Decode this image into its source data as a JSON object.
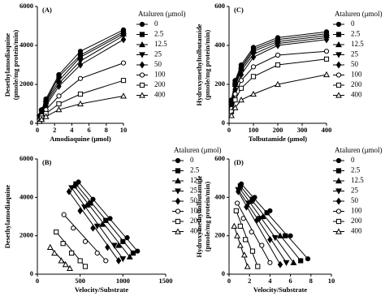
{
  "chart_data": [
    {
      "type": "line",
      "panel": "(A)",
      "xlabel": "Amodiaquine (μmol)",
      "ylabel": [
        "Desethylamodiaquine",
        "(pmole/mg protein/min)"
      ],
      "legend_title": "Ataluren (μmol)",
      "x": [
        0.25,
        0.5,
        1,
        2.5,
        5,
        10
      ],
      "xlim": [
        0,
        10
      ],
      "xticks": [
        0,
        2,
        4,
        6,
        8,
        10
      ],
      "ylim": [
        0,
        6000
      ],
      "yticks": [
        0,
        2000,
        4000,
        6000
      ],
      "series": [
        {
          "name": "0",
          "color": "#000000",
          "marker": "circle",
          "values": [
            380,
            700,
            1250,
            2500,
            3700,
            4800
          ]
        },
        {
          "name": "2.5",
          "color": "#000000",
          "marker": "square",
          "values": [
            350,
            650,
            1150,
            2400,
            3500,
            4700
          ]
        },
        {
          "name": "12.5",
          "color": "#000000",
          "marker": "triangle",
          "values": [
            320,
            600,
            1100,
            2200,
            3400,
            4600
          ]
        },
        {
          "name": "25",
          "color": "#000000",
          "marker": "triangle-down",
          "values": [
            300,
            560,
            1000,
            2050,
            3200,
            4500
          ]
        },
        {
          "name": "50",
          "color": "#000000",
          "marker": "diamond",
          "values": [
            270,
            500,
            900,
            1900,
            3000,
            4300
          ]
        },
        {
          "name": "100",
          "color": "#000000",
          "marker": "open-circle",
          "values": [
            200,
            380,
            700,
            1400,
            2300,
            3100
          ]
        },
        {
          "name": "200",
          "color": "#000000",
          "marker": "open-square",
          "values": [
            140,
            270,
            500,
            1000,
            1500,
            2200
          ]
        },
        {
          "name": "400",
          "color": "#000000",
          "marker": "open-triangle",
          "values": [
            100,
            200,
            350,
            700,
            1000,
            1400
          ]
        }
      ]
    },
    {
      "type": "line",
      "panel": "(C)",
      "xlabel": "Tolbutamide (μmol)",
      "ylabel": [
        "Hydroxymethyltolbutamide",
        "(pmole/mg protein/min)"
      ],
      "legend_title": "Ataluren (μmol)",
      "x": [
        10,
        25,
        50,
        100,
        200,
        400
      ],
      "xlim": [
        0,
        400
      ],
      "xticks": [
        0,
        100,
        200,
        300,
        400
      ],
      "ylim": [
        0,
        600
      ],
      "yticks": [
        0,
        200,
        400,
        600
      ],
      "series": [
        {
          "name": "0",
          "color": "#000000",
          "marker": "circle",
          "values": [
            120,
            220,
            300,
            390,
            440,
            470
          ]
        },
        {
          "name": "2.5",
          "color": "#000000",
          "marker": "square",
          "values": [
            115,
            210,
            290,
            380,
            430,
            460
          ]
        },
        {
          "name": "12.5",
          "color": "#000000",
          "marker": "triangle",
          "values": [
            110,
            200,
            280,
            370,
            420,
            450
          ]
        },
        {
          "name": "25",
          "color": "#000000",
          "marker": "triangle-down",
          "values": [
            100,
            190,
            270,
            355,
            410,
            440
          ]
        },
        {
          "name": "50",
          "color": "#000000",
          "marker": "diamond",
          "values": [
            90,
            175,
            250,
            340,
            400,
            430
          ]
        },
        {
          "name": "100",
          "color": "#000000",
          "marker": "open-circle",
          "values": [
            75,
            150,
            220,
            290,
            350,
            370
          ]
        },
        {
          "name": "200",
          "color": "#000000",
          "marker": "open-square",
          "values": [
            60,
            120,
            180,
            240,
            300,
            330
          ]
        },
        {
          "name": "400",
          "color": "#000000",
          "marker": "open-triangle",
          "values": [
            40,
            80,
            120,
            150,
            200,
            250
          ]
        }
      ]
    },
    {
      "type": "scatter",
      "panel": "(B)",
      "xlabel": "Velocity/Substrate",
      "ylabel": [
        "Desethylamodiaquine"
      ],
      "legend_title": "Ataluren (μmol)",
      "xlim": [
        0,
        1500
      ],
      "xticks": [
        0,
        500,
        1000,
        1500
      ],
      "ylim": [
        0,
        6000
      ],
      "yticks": [
        0,
        2000,
        4000,
        6000
      ],
      "series": [
        {
          "name": "0",
          "color": "#000000",
          "marker": "circle",
          "x": [
            480,
            650,
            850,
            1050,
            1170
          ],
          "values": [
            4800,
            3900,
            2900,
            1900,
            1200
          ]
        },
        {
          "name": "2.5",
          "color": "#000000",
          "marker": "square",
          "x": [
            450,
            620,
            800,
            1000,
            1120
          ],
          "values": [
            4700,
            3700,
            2800,
            1700,
            1100
          ]
        },
        {
          "name": "12.5",
          "color": "#000000",
          "marker": "triangle",
          "x": [
            430,
            580,
            760,
            950,
            1080
          ],
          "values": [
            4600,
            3600,
            2600,
            1500,
            900
          ]
        },
        {
          "name": "25",
          "color": "#000000",
          "marker": "triangle-down",
          "x": [
            400,
            550,
            700,
            900,
            1000
          ],
          "values": [
            4500,
            3500,
            2500,
            1500,
            800
          ]
        },
        {
          "name": "50",
          "color": "#000000",
          "marker": "diamond",
          "x": [
            370,
            500,
            650,
            820,
            950
          ],
          "values": [
            4300,
            3300,
            2400,
            1400,
            700
          ]
        },
        {
          "name": "100",
          "color": "#000000",
          "marker": "open-circle",
          "x": [
            310,
            420,
            560,
            700,
            800
          ],
          "values": [
            3100,
            2400,
            1700,
            1100,
            700
          ]
        },
        {
          "name": "200",
          "color": "#000000",
          "marker": "open-square",
          "x": [
            220,
            300,
            400,
            500,
            560
          ],
          "values": [
            2200,
            1600,
            1100,
            700,
            400
          ]
        },
        {
          "name": "400",
          "color": "#000000",
          "marker": "open-triangle",
          "x": [
            150,
            200,
            280,
            330,
            380
          ],
          "values": [
            1400,
            1100,
            700,
            500,
            300
          ]
        }
      ]
    },
    {
      "type": "scatter",
      "panel": "(D)",
      "xlabel": "Velocity/Substrate",
      "ylabel": [
        "Hydroxymethyltolbutamide",
        "(pmole/mg protein/min)"
      ],
      "legend_title": "Ataluren (μmol)",
      "xlim": [
        0,
        10
      ],
      "xticks": [
        0,
        2,
        4,
        6,
        8,
        10
      ],
      "ylim": [
        0,
        600
      ],
      "yticks": [
        0,
        200,
        400,
        600
      ],
      "series": [
        {
          "name": "0",
          "color": "#000000",
          "marker": "circle",
          "x": [
            1.2,
            2.5,
            4,
            6,
            7.7
          ],
          "values": [
            470,
            400,
            330,
            200,
            80
          ]
        },
        {
          "name": "2.5",
          "color": "#000000",
          "marker": "square",
          "x": [
            1.1,
            2.3,
            3.7,
            5.5,
            7
          ],
          "values": [
            460,
            390,
            320,
            200,
            70
          ]
        },
        {
          "name": "12.5",
          "color": "#000000",
          "marker": "triangle",
          "x": [
            1.0,
            2.1,
            3.3,
            5,
            6.3
          ],
          "values": [
            450,
            380,
            300,
            200,
            60
          ]
        },
        {
          "name": "25",
          "color": "#000000",
          "marker": "triangle-down",
          "x": [
            0.9,
            1.9,
            3,
            4.5,
            5.6
          ],
          "values": [
            440,
            370,
            290,
            190,
            60
          ]
        },
        {
          "name": "50",
          "color": "#000000",
          "marker": "diamond",
          "x": [
            0.9,
            1.7,
            2.7,
            4,
            5
          ],
          "values": [
            430,
            350,
            280,
            180,
            50
          ]
        },
        {
          "name": "100",
          "color": "#000000",
          "marker": "open-circle",
          "x": [
            0.8,
            1.4,
            2.2,
            3.2,
            4
          ],
          "values": [
            370,
            290,
            220,
            150,
            60
          ]
        },
        {
          "name": "200",
          "color": "#000000",
          "marker": "open-square",
          "x": [
            0.7,
            1.1,
            1.6,
            2.3,
            2.8
          ],
          "values": [
            330,
            250,
            180,
            120,
            40
          ]
        },
        {
          "name": "400",
          "color": "#000000",
          "marker": "open-triangle",
          "x": [
            0.5,
            0.8,
            1.1,
            1.5,
            1.8
          ],
          "values": [
            250,
            200,
            150,
            100,
            40
          ]
        }
      ]
    }
  ]
}
